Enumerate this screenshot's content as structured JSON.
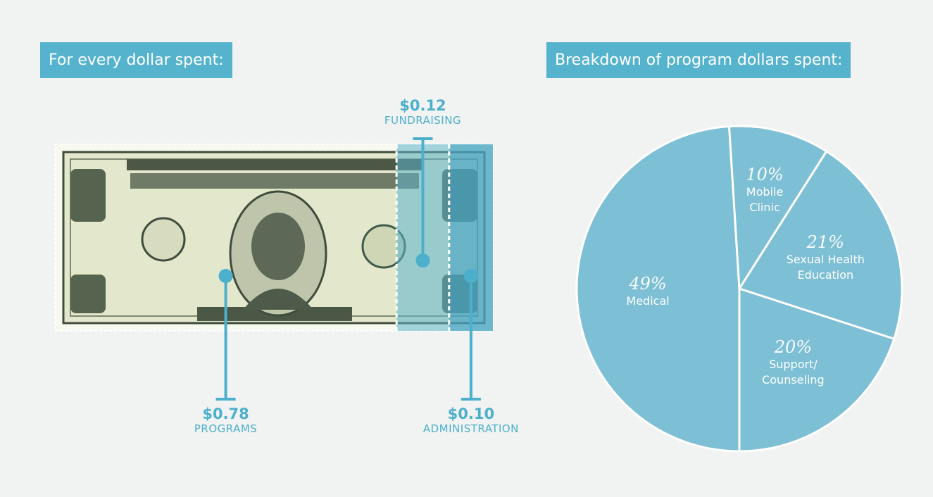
{
  "chart_data": [
    {
      "type": "dollar",
      "title": "For every dollar spent:",
      "categories": [
        "PROGRAMS",
        "FUNDRAISING",
        "ADMINISTRATION"
      ],
      "values": [
        0.78,
        0.12,
        0.1
      ],
      "value_labels": [
        "$0.78",
        "$0.12",
        "$0.10"
      ],
      "color": "#4cb0cc"
    },
    {
      "type": "pie",
      "title": "Breakdown of program dollars spent:",
      "categories": [
        "Medical",
        "Mobile Clinic",
        "Sexual Health Education",
        "Support/ Counseling"
      ],
      "values": [
        49,
        10,
        21,
        20
      ],
      "value_labels": [
        "49%",
        "10%",
        "21%",
        "20%"
      ],
      "color": "#7dbfd4"
    }
  ]
}
